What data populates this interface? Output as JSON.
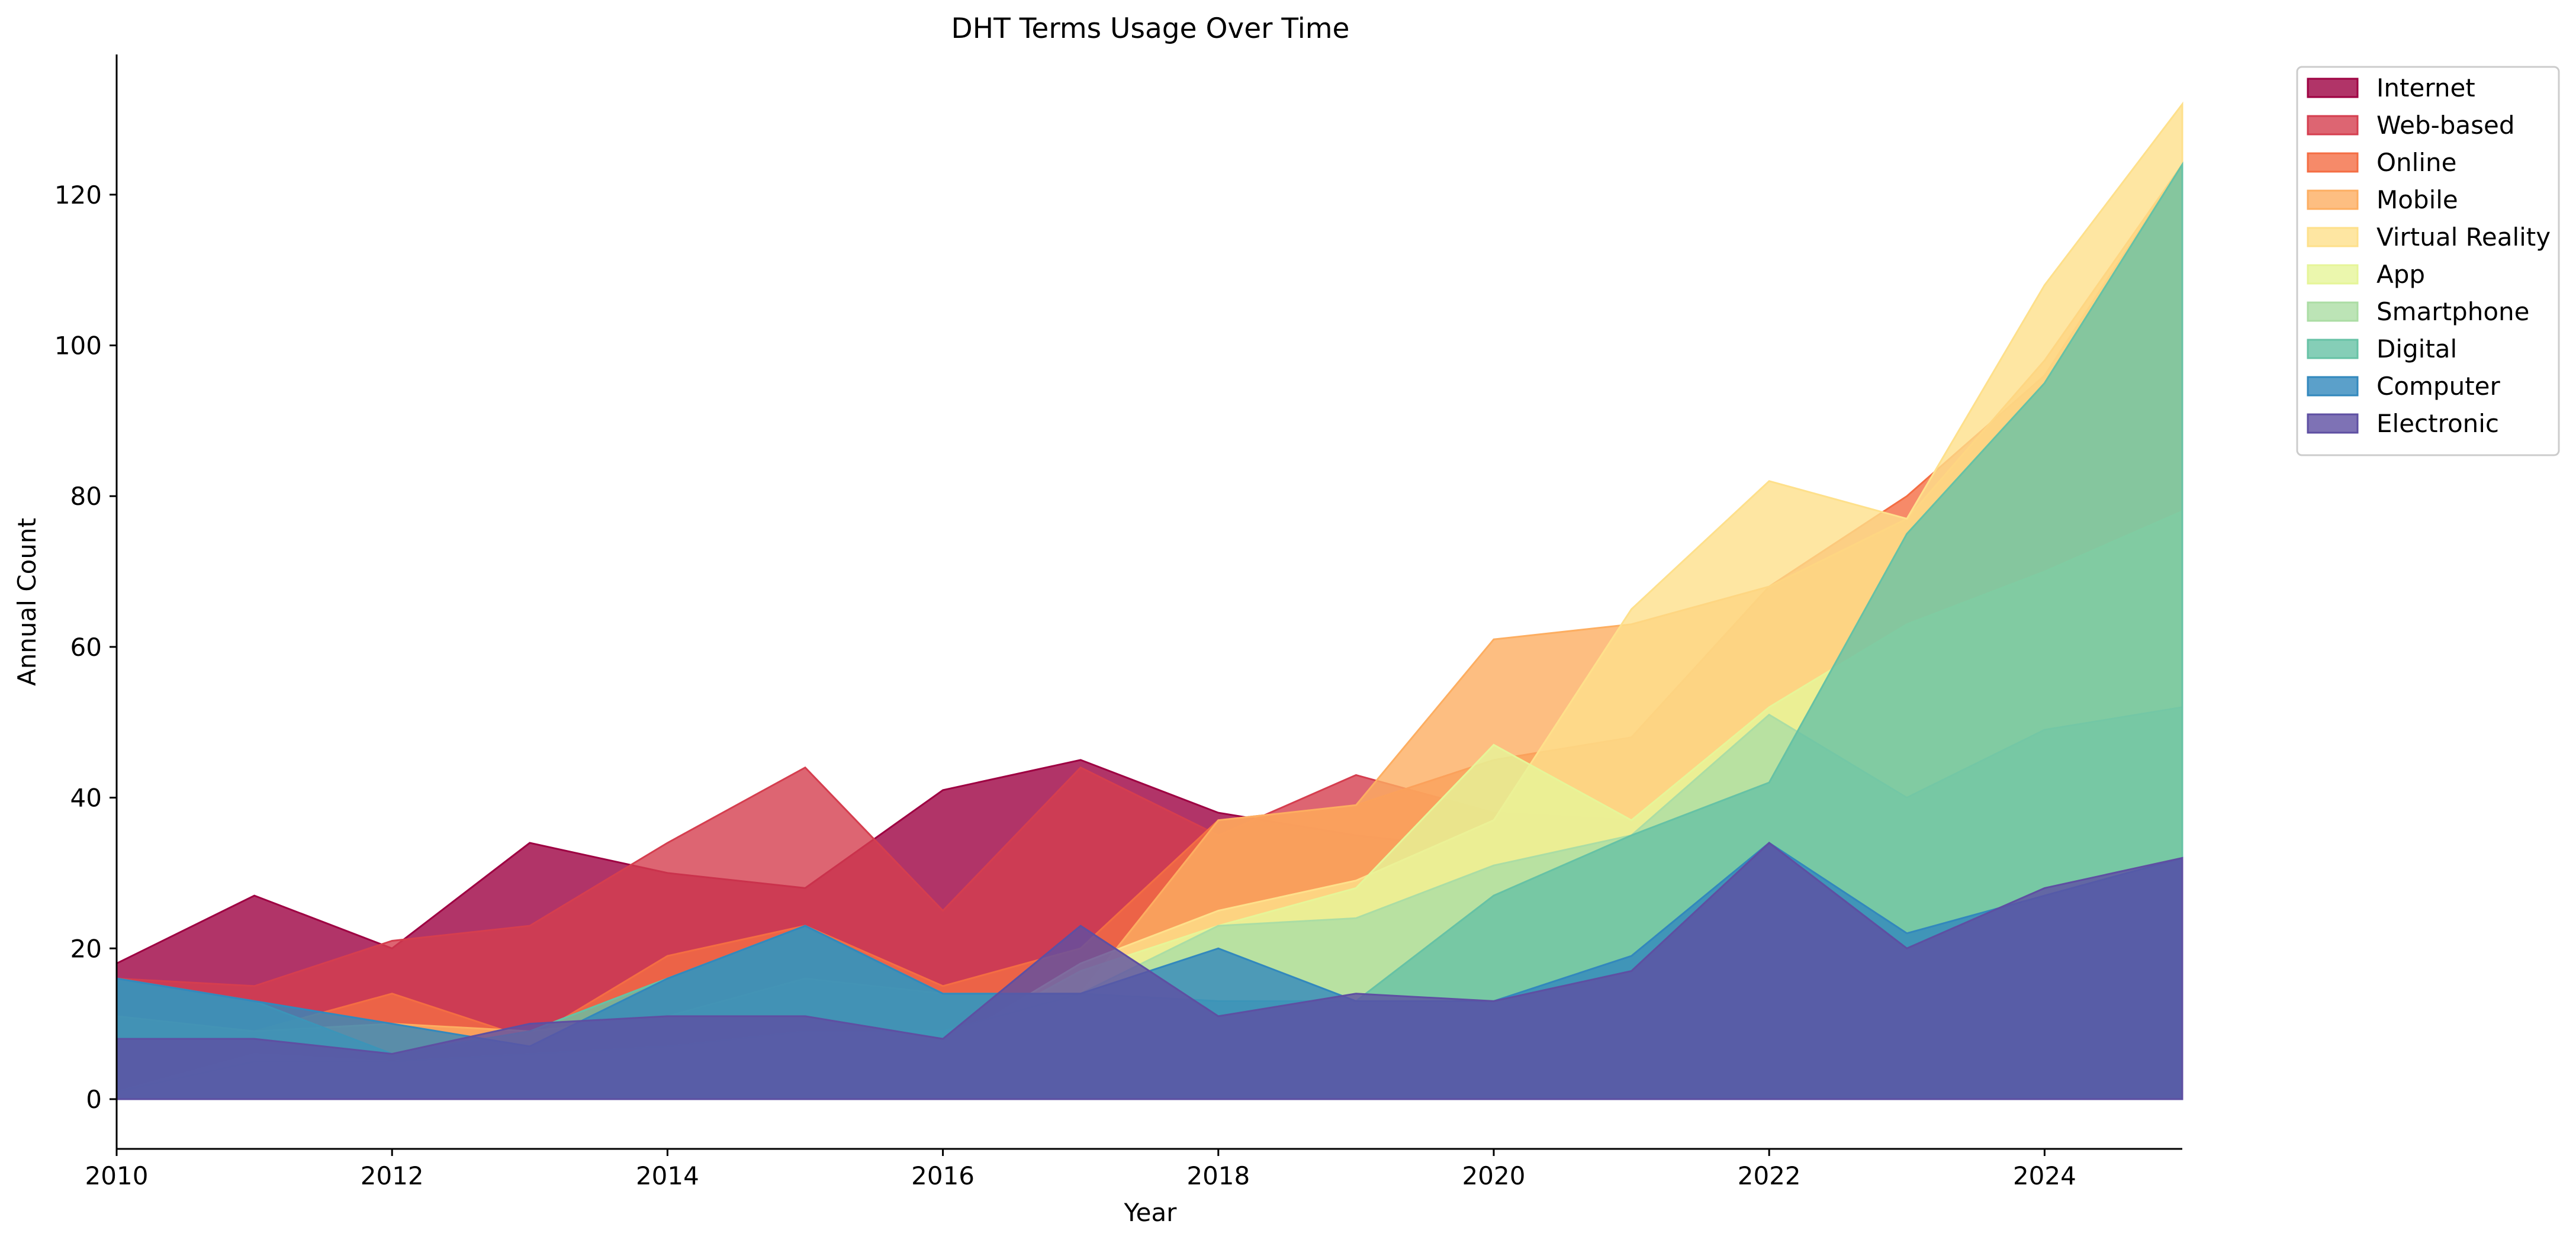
{
  "chart_data": {
    "type": "area",
    "title": "DHT Terms Usage Over Time",
    "xlabel": "Year",
    "ylabel": "Annual Count",
    "x": [
      2010,
      2011,
      2012,
      2013,
      2014,
      2015,
      2016,
      2017,
      2018,
      2019,
      2020,
      2021,
      2022,
      2023,
      2024,
      2025
    ],
    "xlim": [
      2010,
      2025
    ],
    "ylim": [
      -6.6,
      138.6
    ],
    "x_ticks": [
      2010,
      2012,
      2014,
      2016,
      2018,
      2020,
      2022,
      2024
    ],
    "y_ticks": [
      0,
      20,
      40,
      60,
      80,
      100,
      120
    ],
    "grid": false,
    "legend_position": "outside-top-right",
    "series": [
      {
        "name": "Internet",
        "color": "#9e0142",
        "values": [
          18,
          27,
          20,
          34,
          30,
          28,
          41,
          45,
          38,
          35,
          33,
          33,
          32,
          33,
          35,
          36
        ]
      },
      {
        "name": "Web-based",
        "color": "#d53e4f",
        "values": [
          16,
          15,
          21,
          23,
          34,
          44,
          25,
          44,
          35,
          43,
          38,
          37,
          35,
          36,
          38,
          40
        ]
      },
      {
        "name": "Online",
        "color": "#f46d43",
        "values": [
          10,
          9,
          14,
          8,
          19,
          23,
          15,
          20,
          37,
          39,
          45,
          48,
          68,
          80,
          96,
          124
        ]
      },
      {
        "name": "Mobile",
        "color": "#fdae61",
        "values": [
          11,
          9,
          10,
          9,
          11,
          16,
          14,
          14,
          37,
          39,
          61,
          63,
          68,
          77,
          98,
          124
        ]
      },
      {
        "name": "Virtual Reality",
        "color": "#fee08b",
        "values": [
          1,
          6,
          5,
          6,
          6,
          6,
          7,
          18,
          25,
          29,
          37,
          65,
          82,
          77,
          108,
          132
        ]
      },
      {
        "name": "App",
        "color": "#e6f598",
        "values": [
          1,
          6,
          5,
          6,
          6,
          6,
          7,
          17,
          23,
          28,
          47,
          37,
          52,
          63,
          70,
          78
        ]
      },
      {
        "name": "Smartphone",
        "color": "#abdda4",
        "values": [
          1,
          5,
          5,
          6,
          7,
          9,
          9,
          14,
          23,
          24,
          31,
          35,
          51,
          40,
          49,
          52
        ]
      },
      {
        "name": "Digital",
        "color": "#66c2a5",
        "values": [
          16,
          13,
          6,
          9,
          16,
          23,
          14,
          14,
          13,
          13,
          27,
          35,
          42,
          75,
          95,
          124
        ]
      },
      {
        "name": "Computer",
        "color": "#3288bd",
        "values": [
          16,
          13,
          10,
          7,
          16,
          23,
          14,
          14,
          20,
          13,
          13,
          19,
          34,
          22,
          27,
          32
        ]
      },
      {
        "name": "Electronic",
        "color": "#5e4fa2",
        "values": [
          8,
          8,
          6,
          10,
          11,
          11,
          8,
          23,
          11,
          14,
          13,
          17,
          34,
          20,
          28,
          32
        ]
      }
    ]
  }
}
